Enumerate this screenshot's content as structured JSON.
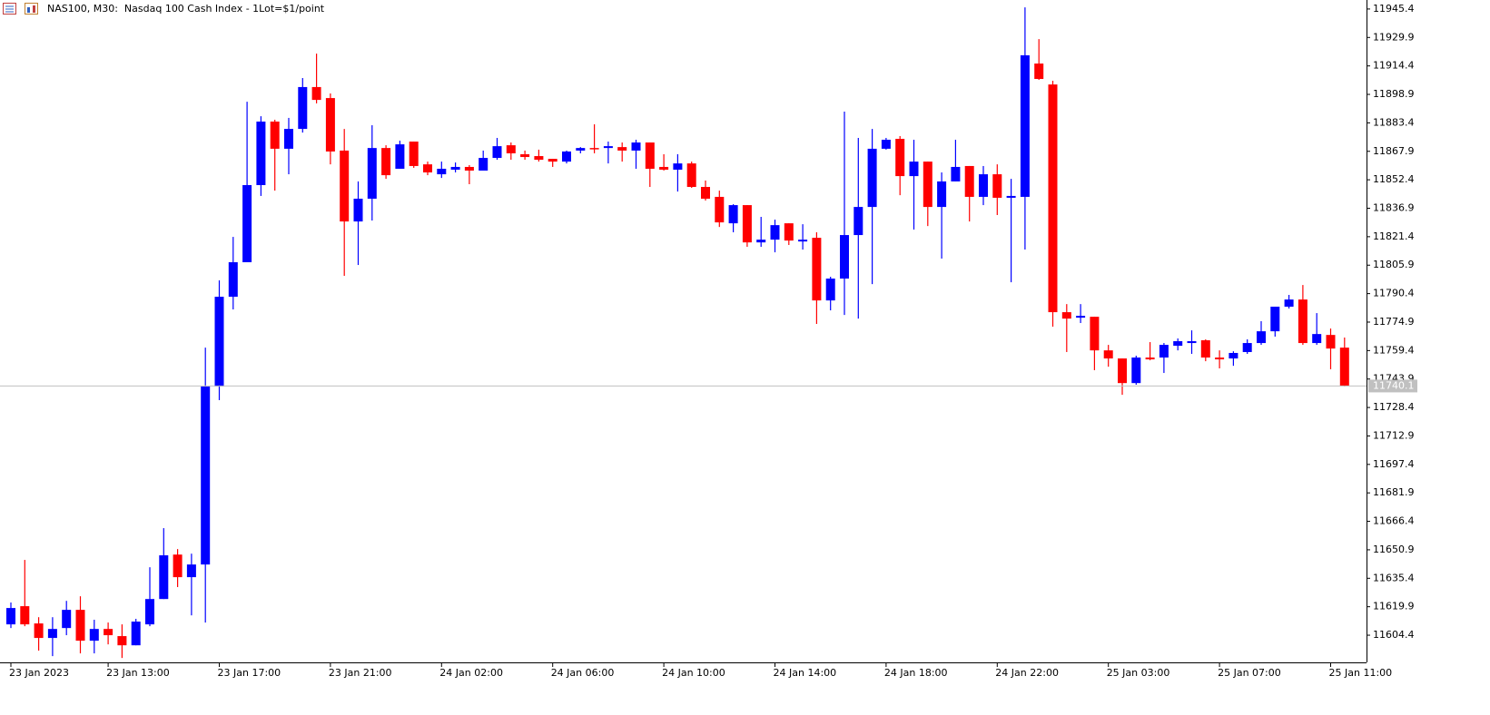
{
  "chart_data": {
    "type": "candlestick",
    "title": "NAS100, M30:  Nasdaq 100 Cash Index - 1Lot=$1/point",
    "categories": [
      "23 Jan 2023",
      null,
      null,
      null,
      null,
      null,
      null,
      "23 Jan 13:00",
      null,
      null,
      null,
      null,
      null,
      null,
      null,
      "23 Jan 17:00",
      null,
      null,
      null,
      null,
      null,
      null,
      null,
      "23 Jan 21:00",
      null,
      null,
      null,
      null,
      null,
      null,
      null,
      "24 Jan 02:00",
      null,
      null,
      null,
      null,
      null,
      null,
      null,
      "24 Jan 06:00",
      null,
      null,
      null,
      null,
      null,
      null,
      null,
      "24 Jan 10:00",
      null,
      null,
      null,
      null,
      null,
      null,
      null,
      "24 Jan 14:00",
      null,
      null,
      null,
      null,
      null,
      null,
      null,
      "24 Jan 18:00",
      null,
      null,
      null,
      null,
      null,
      null,
      null,
      "24 Jan 22:00",
      null,
      null,
      null,
      null,
      null,
      null,
      null,
      "25 Jan 03:00",
      null,
      null,
      null,
      null,
      null,
      null,
      null,
      "25 Jan 07:00",
      null,
      null,
      null,
      null,
      null,
      null,
      null,
      "25 Jan 11:00",
      null
    ],
    "open": [
      11610.3,
      11620.2,
      11610.8,
      11602.9,
      11608.3,
      11618.2,
      11601.4,
      11607.8,
      11603.9,
      11598.9,
      11610.3,
      11624.1,
      11648.3,
      11636.0,
      11642.9,
      11739.8,
      11788.7,
      11807.5,
      11849.5,
      11884.1,
      11869.3,
      11880.1,
      11902.9,
      11896.9,
      11868.3,
      11829.7,
      11842.1,
      11869.7,
      11858.4,
      11873.2,
      11860.8,
      11855.4,
      11857.9,
      11859.4,
      11857.4,
      11864.3,
      11871.2,
      11866.3,
      11865.3,
      11863.8,
      11862.3,
      11868.3,
      11869.7,
      11869.7,
      11870.2,
      11868.3,
      11872.7,
      11859.4,
      11857.9,
      11861.3,
      11848.5,
      11843.1,
      11828.7,
      11838.6,
      11818.3,
      11819.8,
      11828.7,
      11818.8,
      11820.8,
      11786.7,
      11798.6,
      11822.3,
      11837.6,
      11869.3,
      11874.7,
      11854.4,
      11862.3,
      11837.6,
      11851.5,
      11859.9,
      11843.1,
      11855.4,
      11842.6,
      11843.1,
      11915.7,
      11904.3,
      11780.3,
      11777.3,
      11777.8,
      11759.5,
      11755.1,
      11741.7,
      11755.6,
      11755.6,
      11762.0,
      11763.5,
      11765.0,
      11755.6,
      11755.1,
      11758.6,
      11763.5,
      11769.9,
      11783.3,
      11787.2,
      11763.5,
      11767.9,
      11761.0
    ],
    "high": [
      11622.2,
      11645.4,
      11614.2,
      11614.2,
      11623.1,
      11625.6,
      11612.8,
      11611.3,
      11610.3,
      11613.3,
      11641.4,
      11662.7,
      11651.3,
      11648.8,
      11761.0,
      11797.6,
      11821.3,
      11894.9,
      11887.0,
      11885.1,
      11886.1,
      11907.8,
      11921.1,
      11899.4,
      11880.1,
      11851.5,
      11882.1,
      11871.2,
      11873.7,
      11873.2,
      11862.3,
      11862.3,
      11861.8,
      11860.4,
      11868.3,
      11875.2,
      11872.7,
      11868.3,
      11868.8,
      11863.8,
      11868.3,
      11870.2,
      11882.6,
      11873.2,
      11872.7,
      11874.2,
      11872.7,
      11866.3,
      11866.3,
      11862.3,
      11852.0,
      11846.5,
      11839.1,
      11838.6,
      11832.2,
      11830.7,
      11828.7,
      11828.2,
      11823.8,
      11799.6,
      11889.5,
      11875.2,
      11880.1,
      11875.2,
      11876.2,
      11874.2,
      11862.3,
      11856.4,
      11874.2,
      11859.9,
      11859.9,
      11860.8,
      11852.9,
      11946.3,
      11929.0,
      11906.3,
      11784.7,
      11784.7,
      11777.8,
      11762.5,
      11755.1,
      11756.6,
      11764.0,
      11763.5,
      11766.0,
      11770.4,
      11765.5,
      11759.5,
      11759.0,
      11765.5,
      11775.4,
      11783.3,
      11789.7,
      11795.1,
      11779.8,
      11771.4,
      11766.5
    ],
    "low": [
      11608.3,
      11609.3,
      11596.0,
      11593.0,
      11604.4,
      11594.5,
      11594.5,
      11599.4,
      11592.0,
      11598.9,
      11609.3,
      11624.1,
      11630.6,
      11615.2,
      11611.3,
      11732.4,
      11781.8,
      11807.5,
      11843.6,
      11846.5,
      11855.4,
      11878.1,
      11894.0,
      11860.8,
      11800.1,
      11806.0,
      11830.2,
      11852.9,
      11858.4,
      11858.9,
      11854.9,
      11853.4,
      11856.4,
      11850.0,
      11857.4,
      11863.3,
      11863.3,
      11863.3,
      11862.3,
      11859.4,
      11861.3,
      11866.8,
      11866.8,
      11861.3,
      11862.3,
      11858.4,
      11848.5,
      11857.4,
      11846.0,
      11848.0,
      11841.1,
      11826.7,
      11823.8,
      11815.9,
      11815.9,
      11812.9,
      11816.9,
      11814.4,
      11773.9,
      11781.3,
      11778.8,
      11776.8,
      11795.6,
      11868.8,
      11844.0,
      11825.3,
      11827.2,
      11809.5,
      11851.5,
      11829.7,
      11838.6,
      11833.2,
      11796.6,
      11814.4,
      11906.8,
      11772.4,
      11758.6,
      11774.4,
      11748.7,
      11750.6,
      11735.3,
      11740.8,
      11754.1,
      11747.2,
      11759.5,
      11757.6,
      11753.6,
      11749.7,
      11751.1,
      11757.6,
      11762.5,
      11767.0,
      11782.3,
      11762.5,
      11762.5,
      11749.2,
      11739.8
    ],
    "close": [
      11619.2,
      11610.3,
      11602.9,
      11607.8,
      11618.2,
      11601.4,
      11607.8,
      11604.4,
      11598.9,
      11611.8,
      11624.1,
      11647.9,
      11636.0,
      11642.9,
      11739.8,
      11788.7,
      11807.5,
      11849.5,
      11884.1,
      11869.3,
      11880.1,
      11902.9,
      11895.9,
      11867.8,
      11829.7,
      11842.1,
      11869.7,
      11854.9,
      11871.7,
      11859.9,
      11856.4,
      11858.4,
      11859.4,
      11857.4,
      11864.3,
      11870.7,
      11866.8,
      11864.8,
      11863.3,
      11862.3,
      11867.8,
      11869.7,
      11869.3,
      11870.7,
      11868.3,
      11872.7,
      11858.4,
      11857.9,
      11861.3,
      11848.5,
      11842.1,
      11829.2,
      11838.6,
      11818.3,
      11819.8,
      11827.7,
      11819.3,
      11819.8,
      11786.7,
      11798.6,
      11822.3,
      11837.6,
      11869.3,
      11874.2,
      11854.4,
      11862.3,
      11837.6,
      11851.5,
      11859.4,
      11843.1,
      11855.4,
      11842.6,
      11843.6,
      11920.2,
      11907.3,
      11780.3,
      11776.8,
      11778.3,
      11759.5,
      11755.1,
      11741.7,
      11755.6,
      11754.6,
      11762.5,
      11764.5,
      11764.5,
      11755.6,
      11754.6,
      11758.1,
      11763.5,
      11769.9,
      11783.3,
      11787.2,
      11763.5,
      11768.4,
      11760.5,
      11740.1
    ],
    "up_color": "#0000ff",
    "down_color": "#ff0000",
    "current_price": 11740.1,
    "ylim": [
      11589.6,
      11950.3
    ],
    "yticks": [
      11945.4,
      11929.9,
      11914.4,
      11898.9,
      11883.4,
      11867.9,
      11852.4,
      11836.9,
      11821.4,
      11805.9,
      11790.4,
      11774.9,
      11759.4,
      11743.9,
      11728.4,
      11712.9,
      11697.4,
      11681.9,
      11666.4,
      11650.9,
      11635.4,
      11619.9,
      11604.4
    ],
    "grid": false
  }
}
